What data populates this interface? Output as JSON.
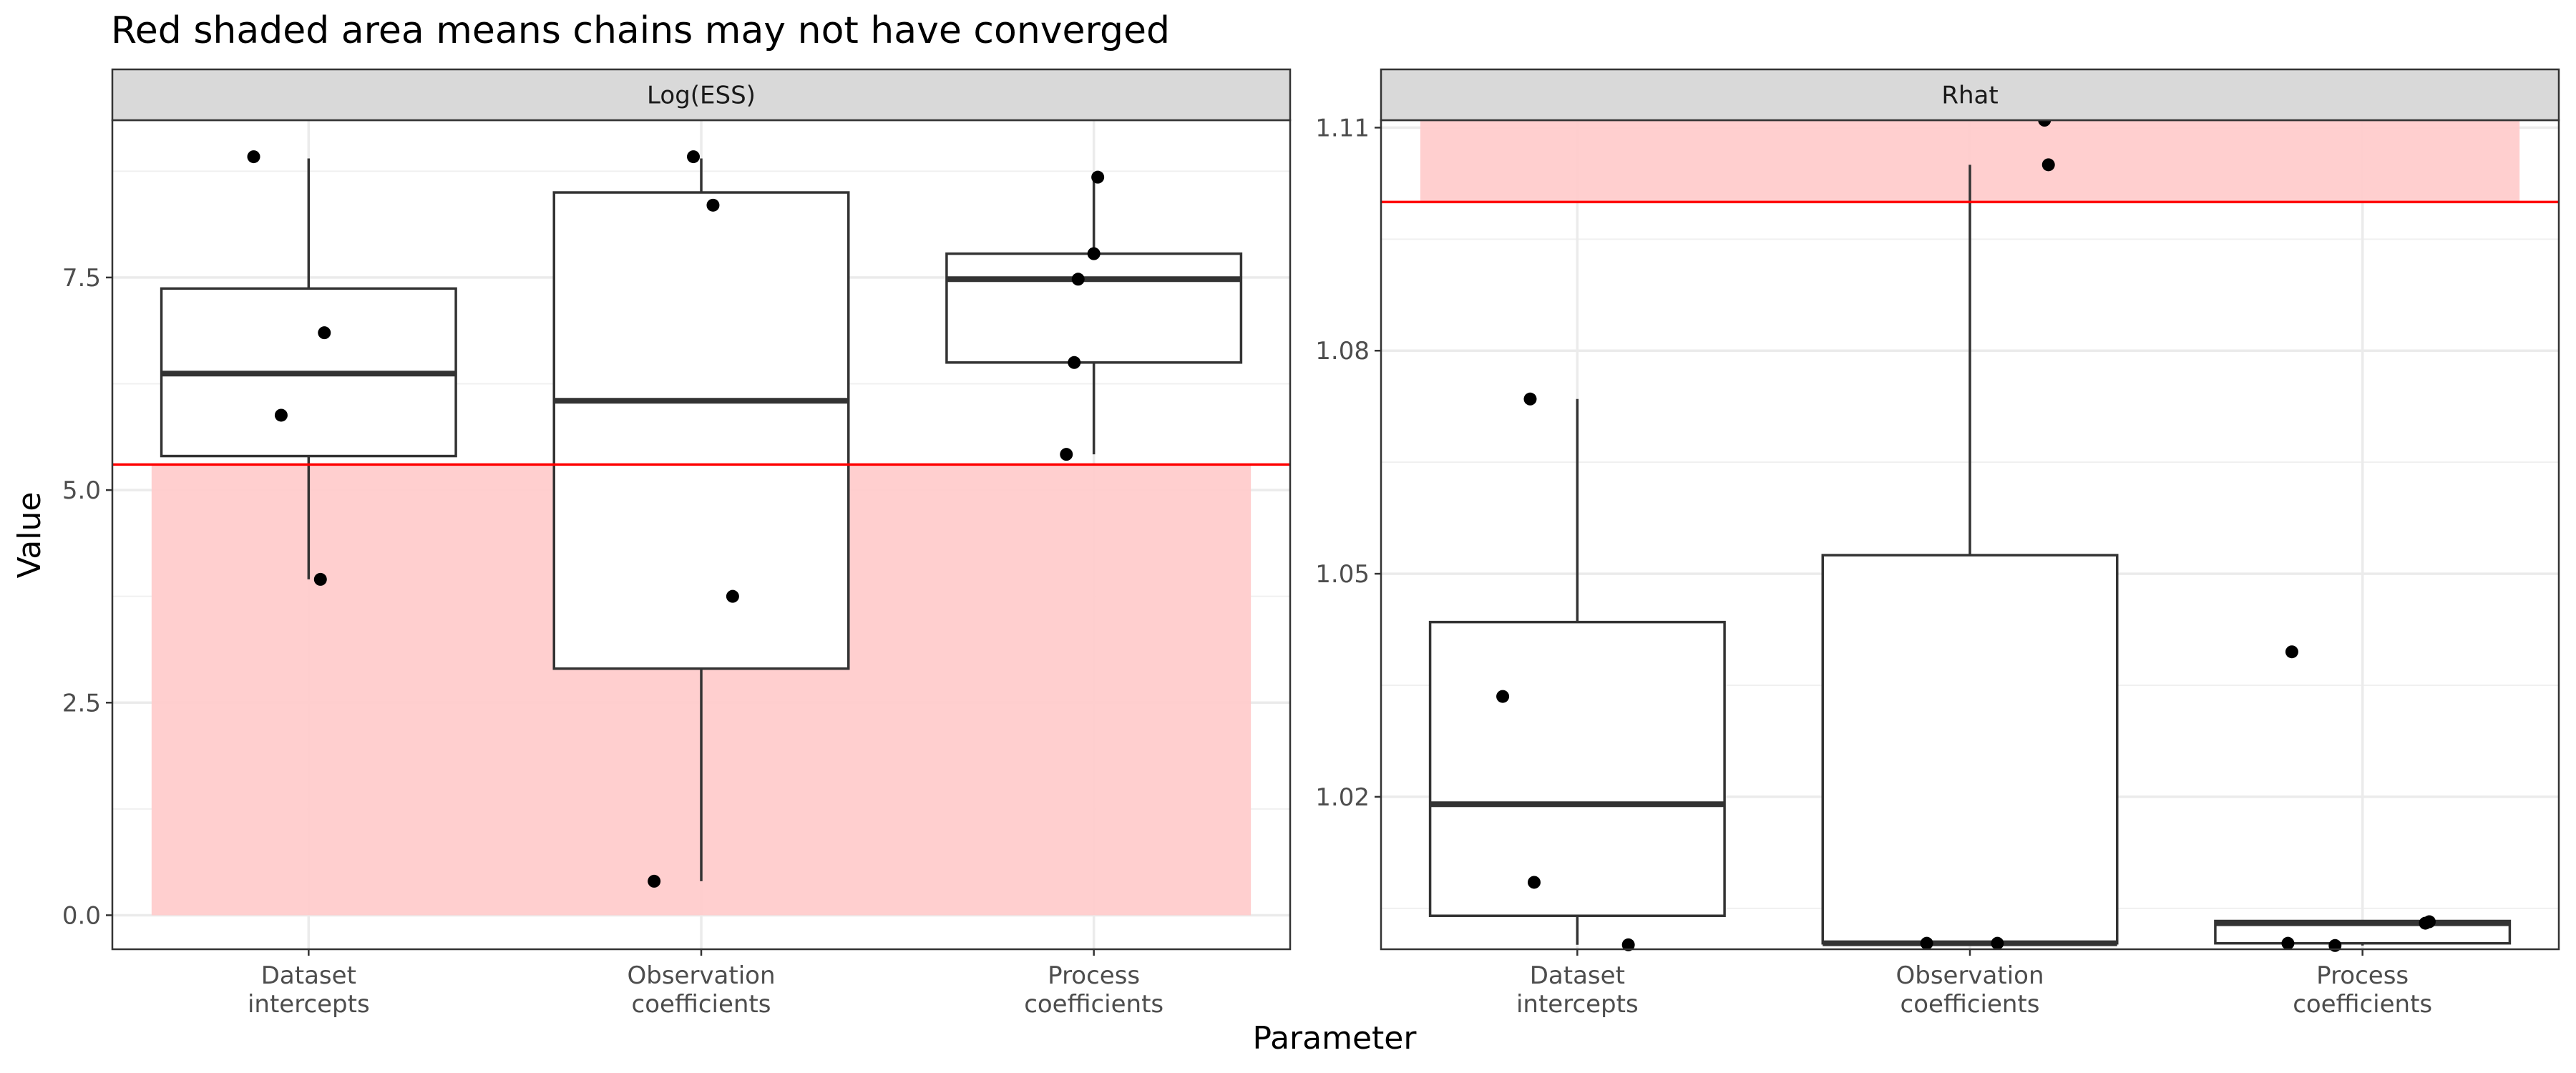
{
  "title": "Red shaded area means chains may not have converged",
  "xlabel": "Parameter",
  "ylabel": "Value",
  "colors": {
    "threshold_line": "#ff0000",
    "shade": "#ffcccc",
    "strip_fill": "#d9d9d9",
    "box_stroke": "#333333",
    "point": "#000000"
  },
  "chart_data": [
    {
      "type": "box",
      "panel": "Log(ESS)",
      "categories": [
        "Dataset\nintercepts",
        "Observation\ncoefficients",
        "Process\ncoefficients"
      ],
      "ylim": [
        -0.4,
        9.35
      ],
      "yticks": [
        0.0,
        2.5,
        5.0,
        7.5
      ],
      "ytick_labels": [
        "0.0",
        "2.5",
        "5.0",
        "7.5"
      ],
      "threshold": 5.3,
      "shade": [
        0,
        5.3
      ],
      "boxes": [
        {
          "lower_whisker": 3.95,
          "q1": 5.4,
          "median": 6.37,
          "q3": 7.37,
          "upper_whisker": 8.9
        },
        {
          "lower_whisker": 0.4,
          "q1": 2.9,
          "median": 6.05,
          "q3": 8.5,
          "upper_whisker": 8.9
        },
        {
          "lower_whisker": 5.42,
          "q1": 6.5,
          "median": 7.48,
          "q3": 7.78,
          "upper_whisker": 8.7
        }
      ],
      "points": [
        {
          "category": 0,
          "y": 8.92,
          "jitter": -0.14
        },
        {
          "category": 0,
          "y": 6.85,
          "jitter": 0.04
        },
        {
          "category": 0,
          "y": 5.88,
          "jitter": -0.07
        },
        {
          "category": 0,
          "y": 3.95,
          "jitter": 0.03
        },
        {
          "category": 1,
          "y": 8.92,
          "jitter": -0.02
        },
        {
          "category": 1,
          "y": 8.35,
          "jitter": 0.03
        },
        {
          "category": 1,
          "y": 3.75,
          "jitter": 0.08
        },
        {
          "category": 1,
          "y": 0.4,
          "jitter": -0.12
        },
        {
          "category": 2,
          "y": 8.68,
          "jitter": 0.01
        },
        {
          "category": 2,
          "y": 7.78,
          "jitter": 0.0
        },
        {
          "category": 2,
          "y": 7.48,
          "jitter": -0.04
        },
        {
          "category": 2,
          "y": 6.5,
          "jitter": -0.05
        },
        {
          "category": 2,
          "y": 5.42,
          "jitter": -0.07
        }
      ]
    },
    {
      "type": "box",
      "panel": "Rhat",
      "categories": [
        "Dataset\nintercepts",
        "Observation\ncoefficients",
        "Process\ncoefficients"
      ],
      "ylim": [
        0.9995,
        1.111
      ],
      "yticks": [
        1.02,
        1.05,
        1.08,
        1.11
      ],
      "ytick_labels": [
        "1.02",
        "1.05",
        "1.08",
        "1.11"
      ],
      "threshold": 1.1,
      "shade": [
        1.1,
        1.111
      ],
      "boxes": [
        {
          "lower_whisker": 1.0001,
          "q1": 1.004,
          "median": 1.019,
          "q3": 1.0435,
          "upper_whisker": 1.0735
        },
        {
          "lower_whisker": 1.0,
          "q1": 1.0003,
          "median": 1.0003,
          "q3": 1.0525,
          "upper_whisker": 1.105
        },
        {
          "lower_whisker": 1.0,
          "q1": 1.0003,
          "median": 1.003,
          "q3": 1.0033,
          "upper_whisker": 1.0033
        }
      ],
      "points": [
        {
          "category": 0,
          "y": 1.0735,
          "jitter": -0.12
        },
        {
          "category": 0,
          "y": 1.0335,
          "jitter": -0.19
        },
        {
          "category": 0,
          "y": 1.0085,
          "jitter": -0.11
        },
        {
          "category": 0,
          "y": 1.0001,
          "jitter": 0.13
        },
        {
          "category": 1,
          "y": 1.111,
          "jitter": 0.19
        },
        {
          "category": 1,
          "y": 1.105,
          "jitter": 0.2
        },
        {
          "category": 1,
          "y": 1.0003,
          "jitter": -0.11
        },
        {
          "category": 1,
          "y": 1.0003,
          "jitter": 0.07
        },
        {
          "category": 2,
          "y": 1.0395,
          "jitter": -0.18
        },
        {
          "category": 2,
          "y": 1.0032,
          "jitter": 0.17
        },
        {
          "category": 2,
          "y": 1.003,
          "jitter": 0.16
        },
        {
          "category": 2,
          "y": 1.0003,
          "jitter": -0.19
        },
        {
          "category": 2,
          "y": 1.0,
          "jitter": -0.07
        }
      ]
    }
  ]
}
